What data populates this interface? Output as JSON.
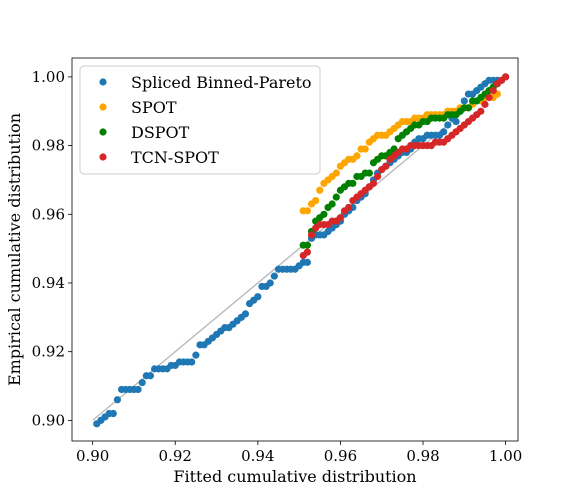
{
  "chart_data": {
    "type": "scatter",
    "xlabel": "Fitted cumulative distribution",
    "ylabel": "Empirical cumulative distribution",
    "xlim": [
      0.895,
      1.003
    ],
    "ylim": [
      0.894,
      1.0055
    ],
    "xticks": [
      "0.90",
      "0.92",
      "0.94",
      "0.96",
      "0.98",
      "1.00"
    ],
    "yticks": [
      "0.90",
      "0.92",
      "0.94",
      "0.96",
      "0.98",
      "1.00"
    ],
    "reference_line": {
      "x": [
        0.9,
        1.0
      ],
      "y": [
        0.9,
        1.0
      ],
      "color": "#bbbbbb"
    },
    "legend": {
      "placement": "upper-left"
    },
    "series": [
      {
        "name": "Spliced Binned-Pareto",
        "color": "#1f77b4",
        "points": [
          [
            0.901,
            0.899
          ],
          [
            0.902,
            0.9
          ],
          [
            0.903,
            0.901
          ],
          [
            0.904,
            0.902
          ],
          [
            0.905,
            0.902
          ],
          [
            0.906,
            0.906
          ],
          [
            0.907,
            0.909
          ],
          [
            0.908,
            0.909
          ],
          [
            0.909,
            0.909
          ],
          [
            0.91,
            0.909
          ],
          [
            0.911,
            0.909
          ],
          [
            0.912,
            0.911
          ],
          [
            0.913,
            0.913
          ],
          [
            0.914,
            0.913
          ],
          [
            0.915,
            0.915
          ],
          [
            0.916,
            0.915
          ],
          [
            0.917,
            0.915
          ],
          [
            0.918,
            0.915
          ],
          [
            0.919,
            0.916
          ],
          [
            0.92,
            0.916
          ],
          [
            0.921,
            0.917
          ],
          [
            0.922,
            0.917
          ],
          [
            0.923,
            0.917
          ],
          [
            0.924,
            0.917
          ],
          [
            0.925,
            0.919
          ],
          [
            0.926,
            0.922
          ],
          [
            0.927,
            0.922
          ],
          [
            0.928,
            0.923
          ],
          [
            0.929,
            0.924
          ],
          [
            0.93,
            0.925
          ],
          [
            0.931,
            0.926
          ],
          [
            0.932,
            0.927
          ],
          [
            0.933,
            0.927
          ],
          [
            0.934,
            0.928
          ],
          [
            0.935,
            0.929
          ],
          [
            0.936,
            0.93
          ],
          [
            0.937,
            0.931
          ],
          [
            0.938,
            0.934
          ],
          [
            0.939,
            0.935
          ],
          [
            0.94,
            0.936
          ],
          [
            0.941,
            0.939
          ],
          [
            0.942,
            0.939
          ],
          [
            0.943,
            0.94
          ],
          [
            0.944,
            0.942
          ],
          [
            0.945,
            0.944
          ],
          [
            0.946,
            0.944
          ],
          [
            0.947,
            0.944
          ],
          [
            0.948,
            0.944
          ],
          [
            0.949,
            0.944
          ],
          [
            0.95,
            0.945
          ],
          [
            0.951,
            0.946
          ],
          [
            0.952,
            0.946
          ],
          [
            0.953,
            0.953
          ],
          [
            0.954,
            0.954
          ],
          [
            0.955,
            0.954
          ],
          [
            0.956,
            0.954
          ],
          [
            0.957,
            0.955
          ],
          [
            0.958,
            0.956
          ],
          [
            0.959,
            0.957
          ],
          [
            0.96,
            0.958
          ],
          [
            0.961,
            0.96
          ],
          [
            0.962,
            0.961
          ],
          [
            0.963,
            0.962
          ],
          [
            0.964,
            0.964
          ],
          [
            0.965,
            0.965
          ],
          [
            0.966,
            0.966
          ],
          [
            0.967,
            0.968
          ],
          [
            0.968,
            0.97
          ],
          [
            0.969,
            0.972
          ],
          [
            0.97,
            0.973
          ],
          [
            0.971,
            0.974
          ],
          [
            0.972,
            0.975
          ],
          [
            0.973,
            0.976
          ],
          [
            0.974,
            0.977
          ],
          [
            0.975,
            0.978
          ],
          [
            0.976,
            0.978
          ],
          [
            0.977,
            0.979
          ],
          [
            0.978,
            0.981
          ],
          [
            0.979,
            0.982
          ],
          [
            0.98,
            0.982
          ],
          [
            0.981,
            0.983
          ],
          [
            0.982,
            0.983
          ],
          [
            0.983,
            0.983
          ],
          [
            0.984,
            0.983
          ],
          [
            0.985,
            0.984
          ],
          [
            0.986,
            0.986
          ],
          [
            0.987,
            0.988
          ],
          [
            0.988,
            0.987
          ],
          [
            0.989,
            0.99
          ],
          [
            0.99,
            0.993
          ],
          [
            0.991,
            0.995
          ],
          [
            0.992,
            0.995
          ],
          [
            0.993,
            0.996
          ],
          [
            0.994,
            0.997
          ],
          [
            0.995,
            0.998
          ],
          [
            0.996,
            0.999
          ],
          [
            0.997,
            0.999
          ],
          [
            0.998,
            0.999
          ],
          [
            0.999,
            0.999
          ],
          [
            1.0,
            1.0
          ]
        ]
      },
      {
        "name": "SPOT",
        "color": "#ffa500",
        "points": [
          [
            0.951,
            0.961
          ],
          [
            0.952,
            0.961
          ],
          [
            0.953,
            0.963
          ],
          [
            0.954,
            0.964
          ],
          [
            0.955,
            0.967
          ],
          [
            0.956,
            0.969
          ],
          [
            0.957,
            0.97
          ],
          [
            0.958,
            0.971
          ],
          [
            0.959,
            0.972
          ],
          [
            0.96,
            0.974
          ],
          [
            0.961,
            0.975
          ],
          [
            0.962,
            0.976
          ],
          [
            0.963,
            0.976
          ],
          [
            0.964,
            0.977
          ],
          [
            0.965,
            0.979
          ],
          [
            0.966,
            0.979
          ],
          [
            0.967,
            0.981
          ],
          [
            0.968,
            0.982
          ],
          [
            0.969,
            0.983
          ],
          [
            0.97,
            0.983
          ],
          [
            0.971,
            0.983
          ],
          [
            0.972,
            0.984
          ],
          [
            0.973,
            0.985
          ],
          [
            0.974,
            0.986
          ],
          [
            0.975,
            0.987
          ],
          [
            0.976,
            0.987
          ],
          [
            0.977,
            0.987
          ],
          [
            0.978,
            0.988
          ],
          [
            0.979,
            0.988
          ],
          [
            0.98,
            0.988
          ],
          [
            0.981,
            0.989
          ],
          [
            0.982,
            0.989
          ],
          [
            0.983,
            0.989
          ],
          [
            0.984,
            0.989
          ],
          [
            0.985,
            0.989
          ],
          [
            0.986,
            0.99
          ],
          [
            0.987,
            0.99
          ],
          [
            0.988,
            0.99
          ],
          [
            0.989,
            0.991
          ],
          [
            0.99,
            0.991
          ],
          [
            0.991,
            0.991
          ],
          [
            0.992,
            0.992
          ],
          [
            0.993,
            0.993
          ],
          [
            0.994,
            0.993
          ],
          [
            0.995,
            0.994
          ],
          [
            0.996,
            0.994
          ],
          [
            0.997,
            0.994
          ],
          [
            0.998,
            0.995
          ]
        ]
      },
      {
        "name": "DSPOT",
        "color": "#008000",
        "points": [
          [
            0.951,
            0.951
          ],
          [
            0.952,
            0.951
          ],
          [
            0.953,
            0.955
          ],
          [
            0.954,
            0.958
          ],
          [
            0.955,
            0.959
          ],
          [
            0.956,
            0.96
          ],
          [
            0.957,
            0.962
          ],
          [
            0.958,
            0.963
          ],
          [
            0.959,
            0.965
          ],
          [
            0.96,
            0.967
          ],
          [
            0.961,
            0.968
          ],
          [
            0.962,
            0.969
          ],
          [
            0.963,
            0.969
          ],
          [
            0.964,
            0.971
          ],
          [
            0.965,
            0.971
          ],
          [
            0.966,
            0.972
          ],
          [
            0.967,
            0.972
          ],
          [
            0.968,
            0.975
          ],
          [
            0.969,
            0.976
          ],
          [
            0.97,
            0.977
          ],
          [
            0.971,
            0.977
          ],
          [
            0.972,
            0.978
          ],
          [
            0.973,
            0.979
          ],
          [
            0.974,
            0.982
          ],
          [
            0.975,
            0.983
          ],
          [
            0.976,
            0.984
          ],
          [
            0.977,
            0.985
          ],
          [
            0.978,
            0.986
          ],
          [
            0.979,
            0.986
          ],
          [
            0.98,
            0.987
          ],
          [
            0.981,
            0.987
          ],
          [
            0.982,
            0.988
          ],
          [
            0.983,
            0.988
          ],
          [
            0.984,
            0.988
          ],
          [
            0.985,
            0.988
          ],
          [
            0.986,
            0.989
          ],
          [
            0.987,
            0.989
          ],
          [
            0.988,
            0.989
          ],
          [
            0.989,
            0.99
          ],
          [
            0.99,
            0.991
          ],
          [
            0.991,
            0.991
          ],
          [
            0.992,
            0.993
          ],
          [
            0.993,
            0.993
          ],
          [
            0.994,
            0.994
          ],
          [
            0.995,
            0.995
          ],
          [
            0.996,
            0.996
          ],
          [
            0.997,
            0.997
          ],
          [
            0.998,
            0.998
          ]
        ]
      },
      {
        "name": "TCN-SPOT",
        "color": "#d62728",
        "points": [
          [
            0.951,
            0.948
          ],
          [
            0.952,
            0.949
          ],
          [
            0.953,
            0.954
          ],
          [
            0.954,
            0.956
          ],
          [
            0.955,
            0.957
          ],
          [
            0.956,
            0.957
          ],
          [
            0.957,
            0.957
          ],
          [
            0.958,
            0.958
          ],
          [
            0.959,
            0.958
          ],
          [
            0.96,
            0.959
          ],
          [
            0.961,
            0.961
          ],
          [
            0.962,
            0.962
          ],
          [
            0.963,
            0.964
          ],
          [
            0.964,
            0.965
          ],
          [
            0.965,
            0.966
          ],
          [
            0.966,
            0.967
          ],
          [
            0.967,
            0.968
          ],
          [
            0.968,
            0.969
          ],
          [
            0.969,
            0.971
          ],
          [
            0.97,
            0.973
          ],
          [
            0.971,
            0.974
          ],
          [
            0.972,
            0.976
          ],
          [
            0.973,
            0.977
          ],
          [
            0.974,
            0.978
          ],
          [
            0.975,
            0.979
          ],
          [
            0.976,
            0.979
          ],
          [
            0.977,
            0.98
          ],
          [
            0.978,
            0.98
          ],
          [
            0.979,
            0.98
          ],
          [
            0.98,
            0.98
          ],
          [
            0.981,
            0.98
          ],
          [
            0.982,
            0.98
          ],
          [
            0.983,
            0.981
          ],
          [
            0.984,
            0.981
          ],
          [
            0.985,
            0.981
          ],
          [
            0.986,
            0.982
          ],
          [
            0.987,
            0.983
          ],
          [
            0.988,
            0.984
          ],
          [
            0.989,
            0.985
          ],
          [
            0.99,
            0.986
          ],
          [
            0.991,
            0.987
          ],
          [
            0.992,
            0.988
          ],
          [
            0.993,
            0.989
          ],
          [
            0.994,
            0.99
          ],
          [
            0.995,
            0.992
          ],
          [
            0.996,
            0.994
          ],
          [
            0.997,
            0.996
          ],
          [
            0.998,
            0.998
          ],
          [
            0.999,
            0.999
          ],
          [
            1.0,
            1.0
          ]
        ]
      }
    ]
  }
}
